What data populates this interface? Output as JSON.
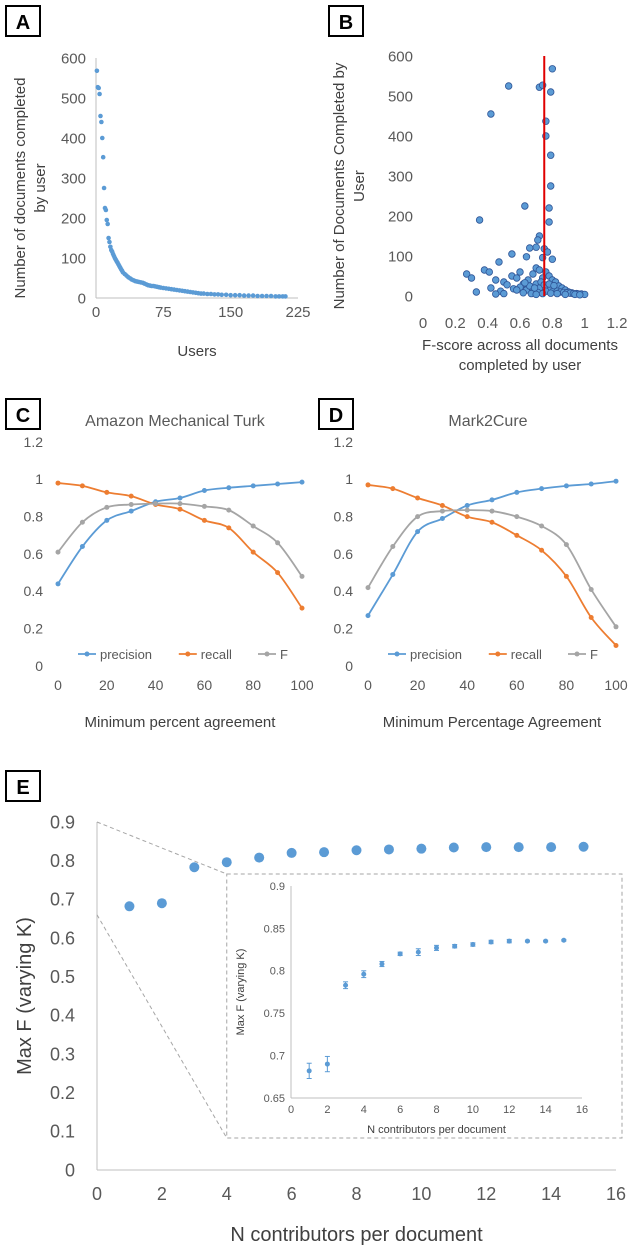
{
  "panel_labels": [
    "A",
    "B",
    "C",
    "D",
    "E"
  ],
  "chart_data": [
    {
      "id": "A",
      "type": "scatter",
      "title": "",
      "xlabel": "Users",
      "ylabel": [
        "Number of documents completed",
        "by user"
      ],
      "xlim": [
        0,
        225
      ],
      "ylim": [
        0,
        600
      ],
      "xticks": [
        0,
        75,
        150,
        225
      ],
      "yticks": [
        0,
        100,
        200,
        300,
        400,
        500,
        600
      ],
      "color": "#5b9bd5",
      "points": [
        [
          1,
          568
        ],
        [
          2,
          527
        ],
        [
          3,
          525
        ],
        [
          4,
          510
        ],
        [
          5,
          455
        ],
        [
          6,
          440
        ],
        [
          7,
          400
        ],
        [
          8,
          352
        ],
        [
          9,
          275
        ],
        [
          10,
          225
        ],
        [
          11,
          220
        ],
        [
          12,
          195
        ],
        [
          13,
          185
        ],
        [
          14,
          150
        ],
        [
          15,
          140
        ],
        [
          16,
          128
        ],
        [
          17,
          120
        ],
        [
          18,
          116
        ],
        [
          19,
          110
        ],
        [
          20,
          105
        ],
        [
          21,
          100
        ],
        [
          22,
          96
        ],
        [
          23,
          92
        ],
        [
          24,
          88
        ],
        [
          25,
          84
        ],
        [
          26,
          80
        ],
        [
          27,
          76
        ],
        [
          28,
          72
        ],
        [
          29,
          68
        ],
        [
          30,
          64
        ],
        [
          32,
          60
        ],
        [
          34,
          56
        ],
        [
          36,
          52
        ],
        [
          38,
          49
        ],
        [
          40,
          46
        ],
        [
          42,
          44
        ],
        [
          44,
          42
        ],
        [
          46,
          41
        ],
        [
          48,
          40
        ],
        [
          50,
          39
        ],
        [
          52,
          38
        ],
        [
          54,
          36
        ],
        [
          56,
          34
        ],
        [
          58,
          32
        ],
        [
          60,
          31
        ],
        [
          62,
          30
        ],
        [
          64,
          30
        ],
        [
          66,
          29
        ],
        [
          68,
          28
        ],
        [
          70,
          27
        ],
        [
          72,
          26
        ],
        [
          75,
          25
        ],
        [
          78,
          24
        ],
        [
          81,
          23
        ],
        [
          84,
          22
        ],
        [
          87,
          21
        ],
        [
          90,
          20
        ],
        [
          93,
          19
        ],
        [
          96,
          18
        ],
        [
          99,
          17
        ],
        [
          102,
          16
        ],
        [
          105,
          15
        ],
        [
          108,
          14
        ],
        [
          111,
          13
        ],
        [
          114,
          12
        ],
        [
          117,
          11
        ],
        [
          120,
          11
        ],
        [
          124,
          10
        ],
        [
          128,
          10
        ],
        [
          132,
          9
        ],
        [
          136,
          9
        ],
        [
          140,
          8
        ],
        [
          145,
          8
        ],
        [
          150,
          7
        ],
        [
          155,
          7
        ],
        [
          160,
          7
        ],
        [
          165,
          6
        ],
        [
          170,
          6
        ],
        [
          175,
          6
        ],
        [
          180,
          5
        ],
        [
          185,
          5
        ],
        [
          190,
          5
        ],
        [
          195,
          5
        ],
        [
          200,
          4
        ],
        [
          204,
          4
        ],
        [
          208,
          4
        ],
        [
          211,
          4
        ]
      ]
    },
    {
      "id": "B",
      "type": "scatter",
      "title": "",
      "xlabel": [
        "F-score across all documents",
        "completed by user"
      ],
      "ylabel": [
        "Number of Documents Completed by",
        "User"
      ],
      "xlim": [
        0,
        1.2
      ],
      "ylim": [
        0,
        600
      ],
      "xticks": [
        0,
        0.2,
        0.4,
        0.6,
        0.8,
        1,
        1.2
      ],
      "xtick_labels": [
        "0",
        "0.2",
        "0.4",
        "0.6",
        "0.8",
        "1",
        "1.2"
      ],
      "yticks": [
        0,
        100,
        200,
        300,
        400,
        500,
        600
      ],
      "color": "#5b9bd5",
      "vline": {
        "x": 0.75,
        "color": "#e00000"
      },
      "points": [
        [
          0.8,
          568
        ],
        [
          0.53,
          525
        ],
        [
          0.72,
          522
        ],
        [
          0.74,
          527
        ],
        [
          0.79,
          510
        ],
        [
          0.42,
          455
        ],
        [
          0.76,
          437
        ],
        [
          0.76,
          400
        ],
        [
          0.79,
          352
        ],
        [
          0.79,
          275
        ],
        [
          0.63,
          225
        ],
        [
          0.78,
          220
        ],
        [
          0.35,
          190
        ],
        [
          0.78,
          185
        ],
        [
          0.72,
          150
        ],
        [
          0.71,
          140
        ],
        [
          0.7,
          122
        ],
        [
          0.66,
          120
        ],
        [
          0.75,
          118
        ],
        [
          0.77,
          110
        ],
        [
          0.55,
          105
        ],
        [
          0.64,
          98
        ],
        [
          0.74,
          96
        ],
        [
          0.8,
          92
        ],
        [
          0.47,
          85
        ],
        [
          0.38,
          65
        ],
        [
          0.27,
          55
        ],
        [
          0.3,
          45
        ],
        [
          0.41,
          60
        ],
        [
          0.45,
          40
        ],
        [
          0.5,
          35
        ],
        [
          0.55,
          50
        ],
        [
          0.58,
          45
        ],
        [
          0.6,
          60
        ],
        [
          0.62,
          30
        ],
        [
          0.65,
          40
        ],
        [
          0.68,
          55
        ],
        [
          0.7,
          70
        ],
        [
          0.72,
          65
        ],
        [
          0.74,
          45
        ],
        [
          0.76,
          60
        ],
        [
          0.78,
          50
        ],
        [
          0.8,
          40
        ],
        [
          0.82,
          35
        ],
        [
          0.84,
          25
        ],
        [
          0.86,
          20
        ],
        [
          0.88,
          15
        ],
        [
          0.9,
          10
        ],
        [
          0.92,
          8
        ],
        [
          0.95,
          6
        ],
        [
          0.98,
          5
        ],
        [
          1.0,
          4
        ],
        [
          0.33,
          10
        ],
        [
          0.42,
          20
        ],
        [
          0.48,
          12
        ],
        [
          0.52,
          28
        ],
        [
          0.56,
          18
        ],
        [
          0.6,
          22
        ],
        [
          0.64,
          15
        ],
        [
          0.66,
          25
        ],
        [
          0.68,
          12
        ],
        [
          0.7,
          30
        ],
        [
          0.72,
          20
        ],
        [
          0.73,
          35
        ],
        [
          0.75,
          28
        ],
        [
          0.77,
          22
        ],
        [
          0.79,
          18
        ],
        [
          0.81,
          15
        ],
        [
          0.83,
          12
        ],
        [
          0.85,
          10
        ],
        [
          0.87,
          9
        ],
        [
          0.89,
          8
        ],
        [
          0.91,
          7
        ],
        [
          0.93,
          6
        ],
        [
          0.96,
          5
        ],
        [
          0.58,
          15
        ],
        [
          0.62,
          8
        ],
        [
          0.5,
          6
        ],
        [
          0.45,
          5
        ],
        [
          0.67,
          6
        ],
        [
          0.71,
          9
        ],
        [
          0.76,
          12
        ],
        [
          0.79,
          7
        ],
        [
          0.83,
          6
        ],
        [
          0.88,
          4
        ],
        [
          0.94,
          4
        ],
        [
          0.97,
          3
        ],
        [
          0.7,
          4
        ],
        [
          0.74,
          6
        ],
        [
          0.78,
          30
        ],
        [
          0.81,
          26
        ],
        [
          0.69,
          20
        ],
        [
          0.63,
          33
        ]
      ]
    },
    {
      "id": "C",
      "type": "line",
      "title": "Amazon Mechanical Turk",
      "xlabel": "Minimum percent agreement",
      "ylabel": "",
      "xlim": [
        0,
        100
      ],
      "ylim": [
        0,
        1.2
      ],
      "xticks": [
        0,
        20,
        40,
        60,
        80,
        100
      ],
      "yticks": [
        0,
        0.2,
        0.4,
        0.6,
        0.8,
        1,
        1.2
      ],
      "ytick_labels": [
        "0",
        "0.2",
        "0.4",
        "0.6",
        "0.8",
        "1",
        "1.2"
      ],
      "x": [
        0,
        10,
        20,
        30,
        40,
        50,
        60,
        70,
        80,
        90,
        100
      ],
      "series": [
        {
          "name": "precision",
          "color": "#5b9bd5",
          "values": [
            0.44,
            0.64,
            0.78,
            0.83,
            0.88,
            0.9,
            0.94,
            0.955,
            0.965,
            0.975,
            0.985
          ]
        },
        {
          "name": "recall",
          "color": "#ed7d31",
          "values": [
            0.98,
            0.965,
            0.93,
            0.91,
            0.865,
            0.84,
            0.78,
            0.74,
            0.61,
            0.5,
            0.31
          ]
        },
        {
          "name": "F",
          "color": "#a5a5a5",
          "values": [
            0.61,
            0.77,
            0.85,
            0.865,
            0.87,
            0.87,
            0.855,
            0.835,
            0.75,
            0.66,
            0.48
          ]
        }
      ]
    },
    {
      "id": "D",
      "type": "line",
      "title": "Mark2Cure",
      "xlabel": "Minimum Percentage Agreement",
      "ylabel": "",
      "xlim": [
        0,
        100
      ],
      "ylim": [
        0,
        1.2
      ],
      "xticks": [
        0,
        20,
        40,
        60,
        80,
        100
      ],
      "yticks": [
        0,
        0.2,
        0.4,
        0.6,
        0.8,
        1,
        1.2
      ],
      "ytick_labels": [
        "0",
        "0.2",
        "0.4",
        "0.6",
        "0.8",
        "1",
        "1.2"
      ],
      "x": [
        0,
        10,
        20,
        30,
        40,
        50,
        60,
        70,
        80,
        90,
        100
      ],
      "series": [
        {
          "name": "precision",
          "color": "#5b9bd5",
          "values": [
            0.27,
            0.49,
            0.72,
            0.79,
            0.86,
            0.89,
            0.93,
            0.95,
            0.965,
            0.975,
            0.99
          ]
        },
        {
          "name": "recall",
          "color": "#ed7d31",
          "values": [
            0.97,
            0.95,
            0.9,
            0.86,
            0.8,
            0.77,
            0.7,
            0.62,
            0.48,
            0.26,
            0.11
          ]
        },
        {
          "name": "F",
          "color": "#a5a5a5",
          "values": [
            0.42,
            0.64,
            0.8,
            0.83,
            0.835,
            0.83,
            0.8,
            0.75,
            0.65,
            0.41,
            0.21
          ]
        }
      ]
    },
    {
      "id": "E",
      "type": "scatter",
      "title": "",
      "xlabel": "N contributors per document",
      "ylabel": "Max F (varying K)",
      "xlim": [
        0,
        16
      ],
      "ylim": [
        0,
        0.9
      ],
      "xticks": [
        0,
        2,
        4,
        6,
        8,
        10,
        12,
        14,
        16
      ],
      "yticks": [
        0,
        0.1,
        0.2,
        0.3,
        0.4,
        0.5,
        0.6,
        0.7,
        0.8,
        0.9
      ],
      "ytick_labels": [
        "0",
        "0.1",
        "0.2",
        "0.3",
        "0.4",
        "0.5",
        "0.6",
        "0.7",
        "0.8",
        "0.9"
      ],
      "color": "#5b9bd5",
      "x": [
        1,
        2,
        3,
        4,
        5,
        6,
        7,
        8,
        9,
        10,
        11,
        12,
        13,
        14,
        15
      ],
      "values": [
        0.682,
        0.69,
        0.783,
        0.796,
        0.808,
        0.82,
        0.822,
        0.827,
        0.829,
        0.831,
        0.834,
        0.835,
        0.835,
        0.835,
        0.836
      ],
      "inset": {
        "xlabel": "N contributors per document",
        "ylabel": "Max F (varying K)",
        "xlim": [
          0,
          16
        ],
        "ylim": [
          0.65,
          0.9
        ],
        "xticks": [
          0,
          2,
          4,
          6,
          8,
          10,
          12,
          14,
          16
        ],
        "yticks": [
          0.65,
          0.7,
          0.75,
          0.8,
          0.85,
          0.9
        ],
        "ytick_labels": [
          "0.65",
          "0.7",
          "0.75",
          "0.8",
          "0.85",
          "0.9"
        ],
        "errors": [
          0.009,
          0.009,
          0.004,
          0.004,
          0.003,
          0.002,
          0.004,
          0.003,
          0.002,
          0.002,
          0.002,
          0.002,
          0.001,
          0.001,
          0.001
        ]
      }
    }
  ]
}
